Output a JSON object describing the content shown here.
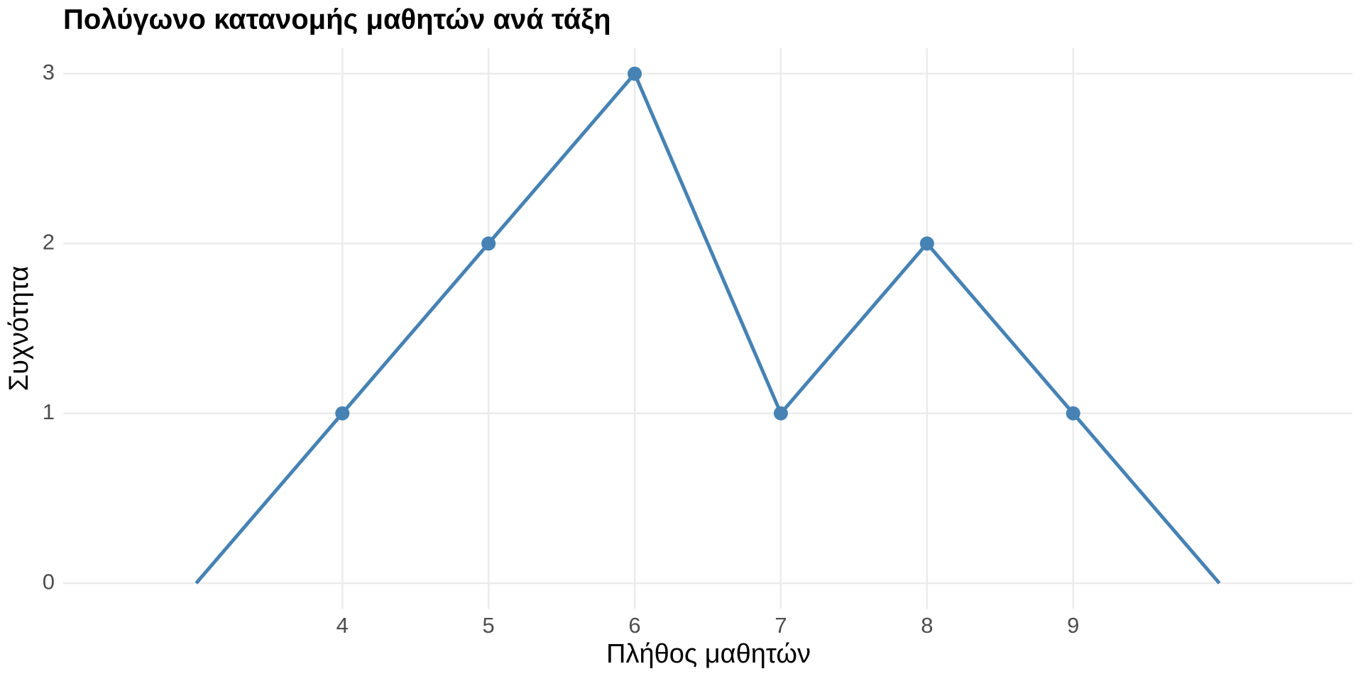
{
  "chart_data": {
    "type": "line",
    "title": "Πολύγωνο κατανομής μαθητών ανά τάξη",
    "x_label": "Πλήθος μαθητών",
    "y_label": "Συχνότητα",
    "x": [
      3,
      4,
      5,
      6,
      7,
      8,
      9,
      10
    ],
    "series": [
      {
        "color": "#4682b4",
        "values": [
          0,
          1,
          2,
          3,
          1,
          2,
          1,
          0
        ]
      }
    ],
    "points": {
      "x": [
        4,
        5,
        6,
        7,
        8,
        9
      ],
      "values": [
        1,
        2,
        3,
        1,
        2,
        1
      ],
      "color": "#4682b4"
    },
    "xlim": [
      2.09,
      10.91
    ],
    "xticks": [
      4,
      5,
      6,
      7,
      8,
      9
    ],
    "ylim": [
      -0.15,
      3.15
    ],
    "yticks": [
      0,
      1,
      2,
      3
    ],
    "grid": true
  }
}
